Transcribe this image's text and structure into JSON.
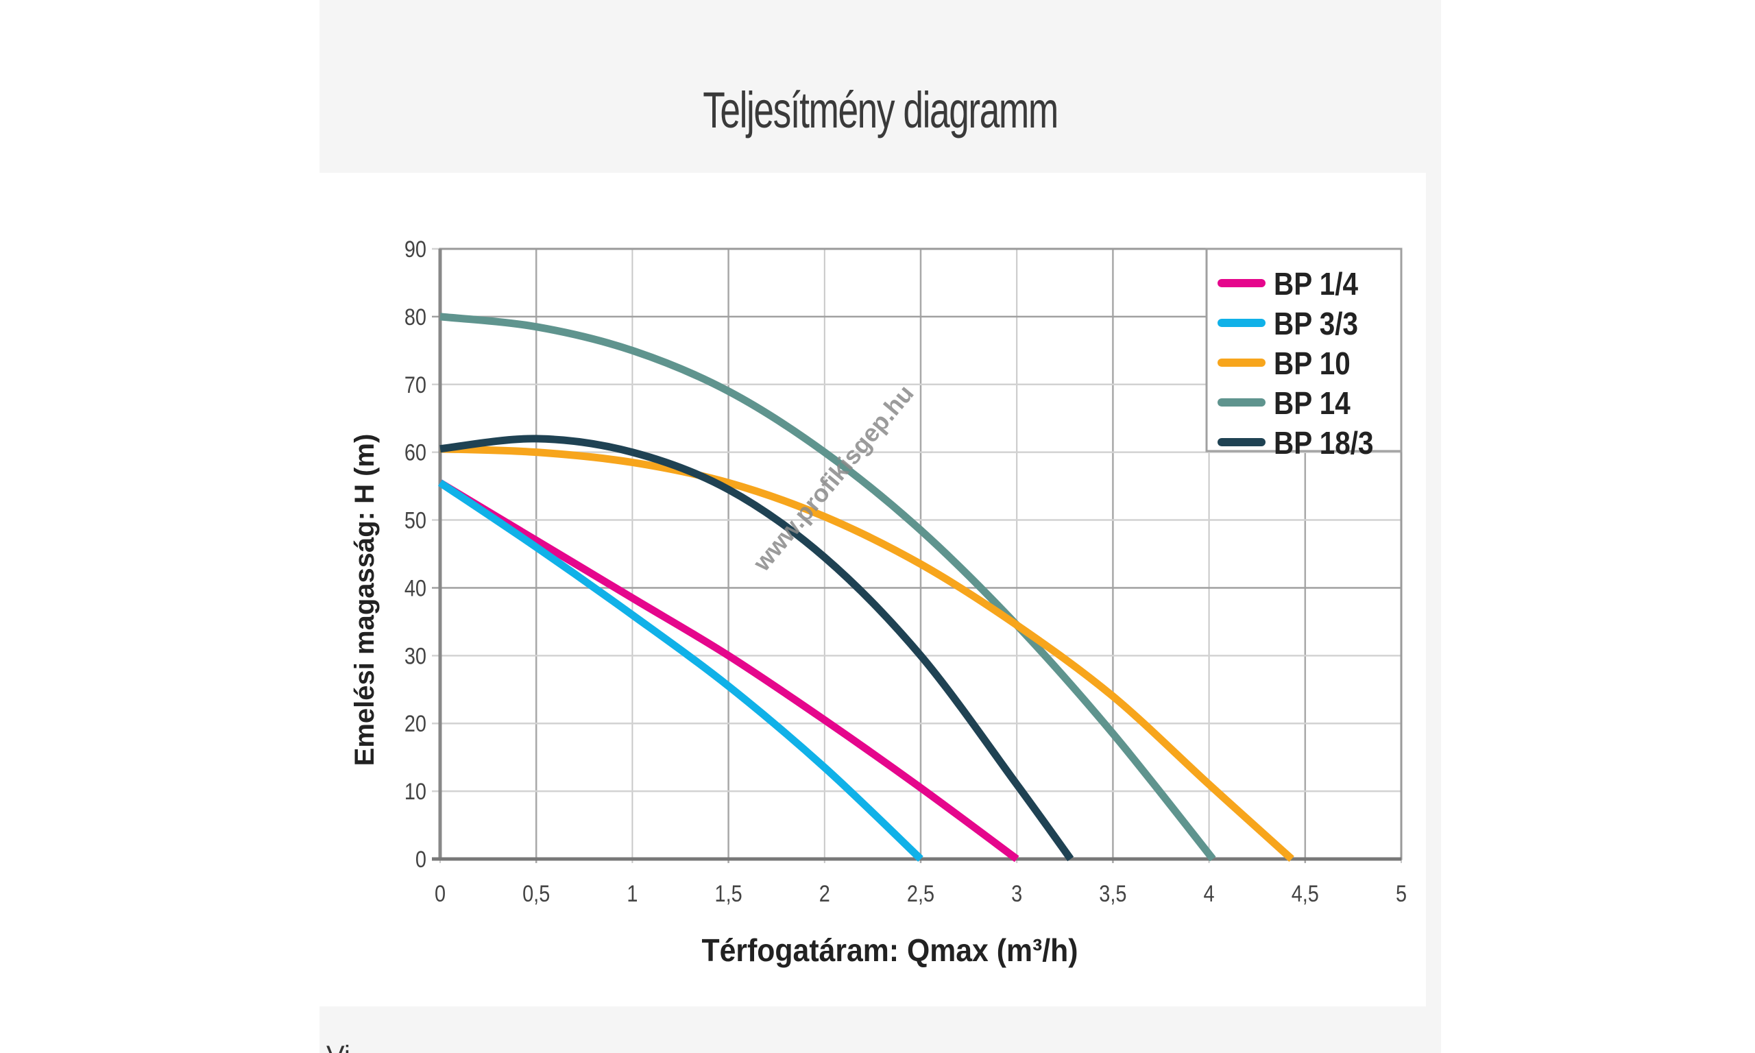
{
  "section": {
    "title": "Teljesítmény diagramm",
    "bottom_partial_text": "Vi..."
  },
  "chart_data": {
    "type": "line",
    "title": "",
    "xlabel": "Térfogatáram: Qmax (m³/h)",
    "ylabel": "Emelési magasság: H (m)",
    "xlim": [
      0,
      5
    ],
    "ylim": [
      0,
      90
    ],
    "x_ticks": [
      "0",
      "0,5",
      "1",
      "1,5",
      "2",
      "2,5",
      "3",
      "3,5",
      "4",
      "4,5",
      "5"
    ],
    "y_ticks": [
      "0",
      "10",
      "20",
      "30",
      "40",
      "50",
      "60",
      "70",
      "80",
      "90"
    ],
    "grid": true,
    "legend_position": "top-right",
    "watermark": "www.profikisgep.hu",
    "series": [
      {
        "name": "BP 1/4",
        "color": "#e5068c",
        "x": [
          0,
          0.5,
          1,
          1.5,
          2,
          2.5,
          3
        ],
        "y": [
          55.5,
          47,
          38.5,
          30,
          20.5,
          10.5,
          0
        ]
      },
      {
        "name": "BP 3/3",
        "color": "#10b1e8",
        "x": [
          0,
          0.5,
          1,
          1.5,
          2,
          2.5
        ],
        "y": [
          55.5,
          46,
          36,
          25.5,
          13.5,
          0
        ]
      },
      {
        "name": "BP 10",
        "color": "#f7a51c",
        "x": [
          0,
          0.5,
          1,
          1.5,
          2,
          2.5,
          3,
          3.5,
          4,
          4.43
        ],
        "y": [
          60.5,
          60,
          58.5,
          55.5,
          50.5,
          43.5,
          34.5,
          24,
          11,
          0
        ]
      },
      {
        "name": "BP 14",
        "color": "#5f948e",
        "x": [
          0,
          0.5,
          1,
          1.5,
          2,
          2.5,
          3,
          3.5,
          4.02
        ],
        "y": [
          80,
          78.5,
          75,
          69,
          60,
          48.5,
          34.5,
          18.5,
          0
        ]
      },
      {
        "name": "BP 18/3",
        "color": "#1f4253",
        "x": [
          0,
          0.5,
          1,
          1.5,
          2,
          2.5,
          3,
          3.28
        ],
        "y": [
          60.5,
          62,
          60,
          54.5,
          44.5,
          30,
          11,
          0
        ]
      }
    ]
  }
}
